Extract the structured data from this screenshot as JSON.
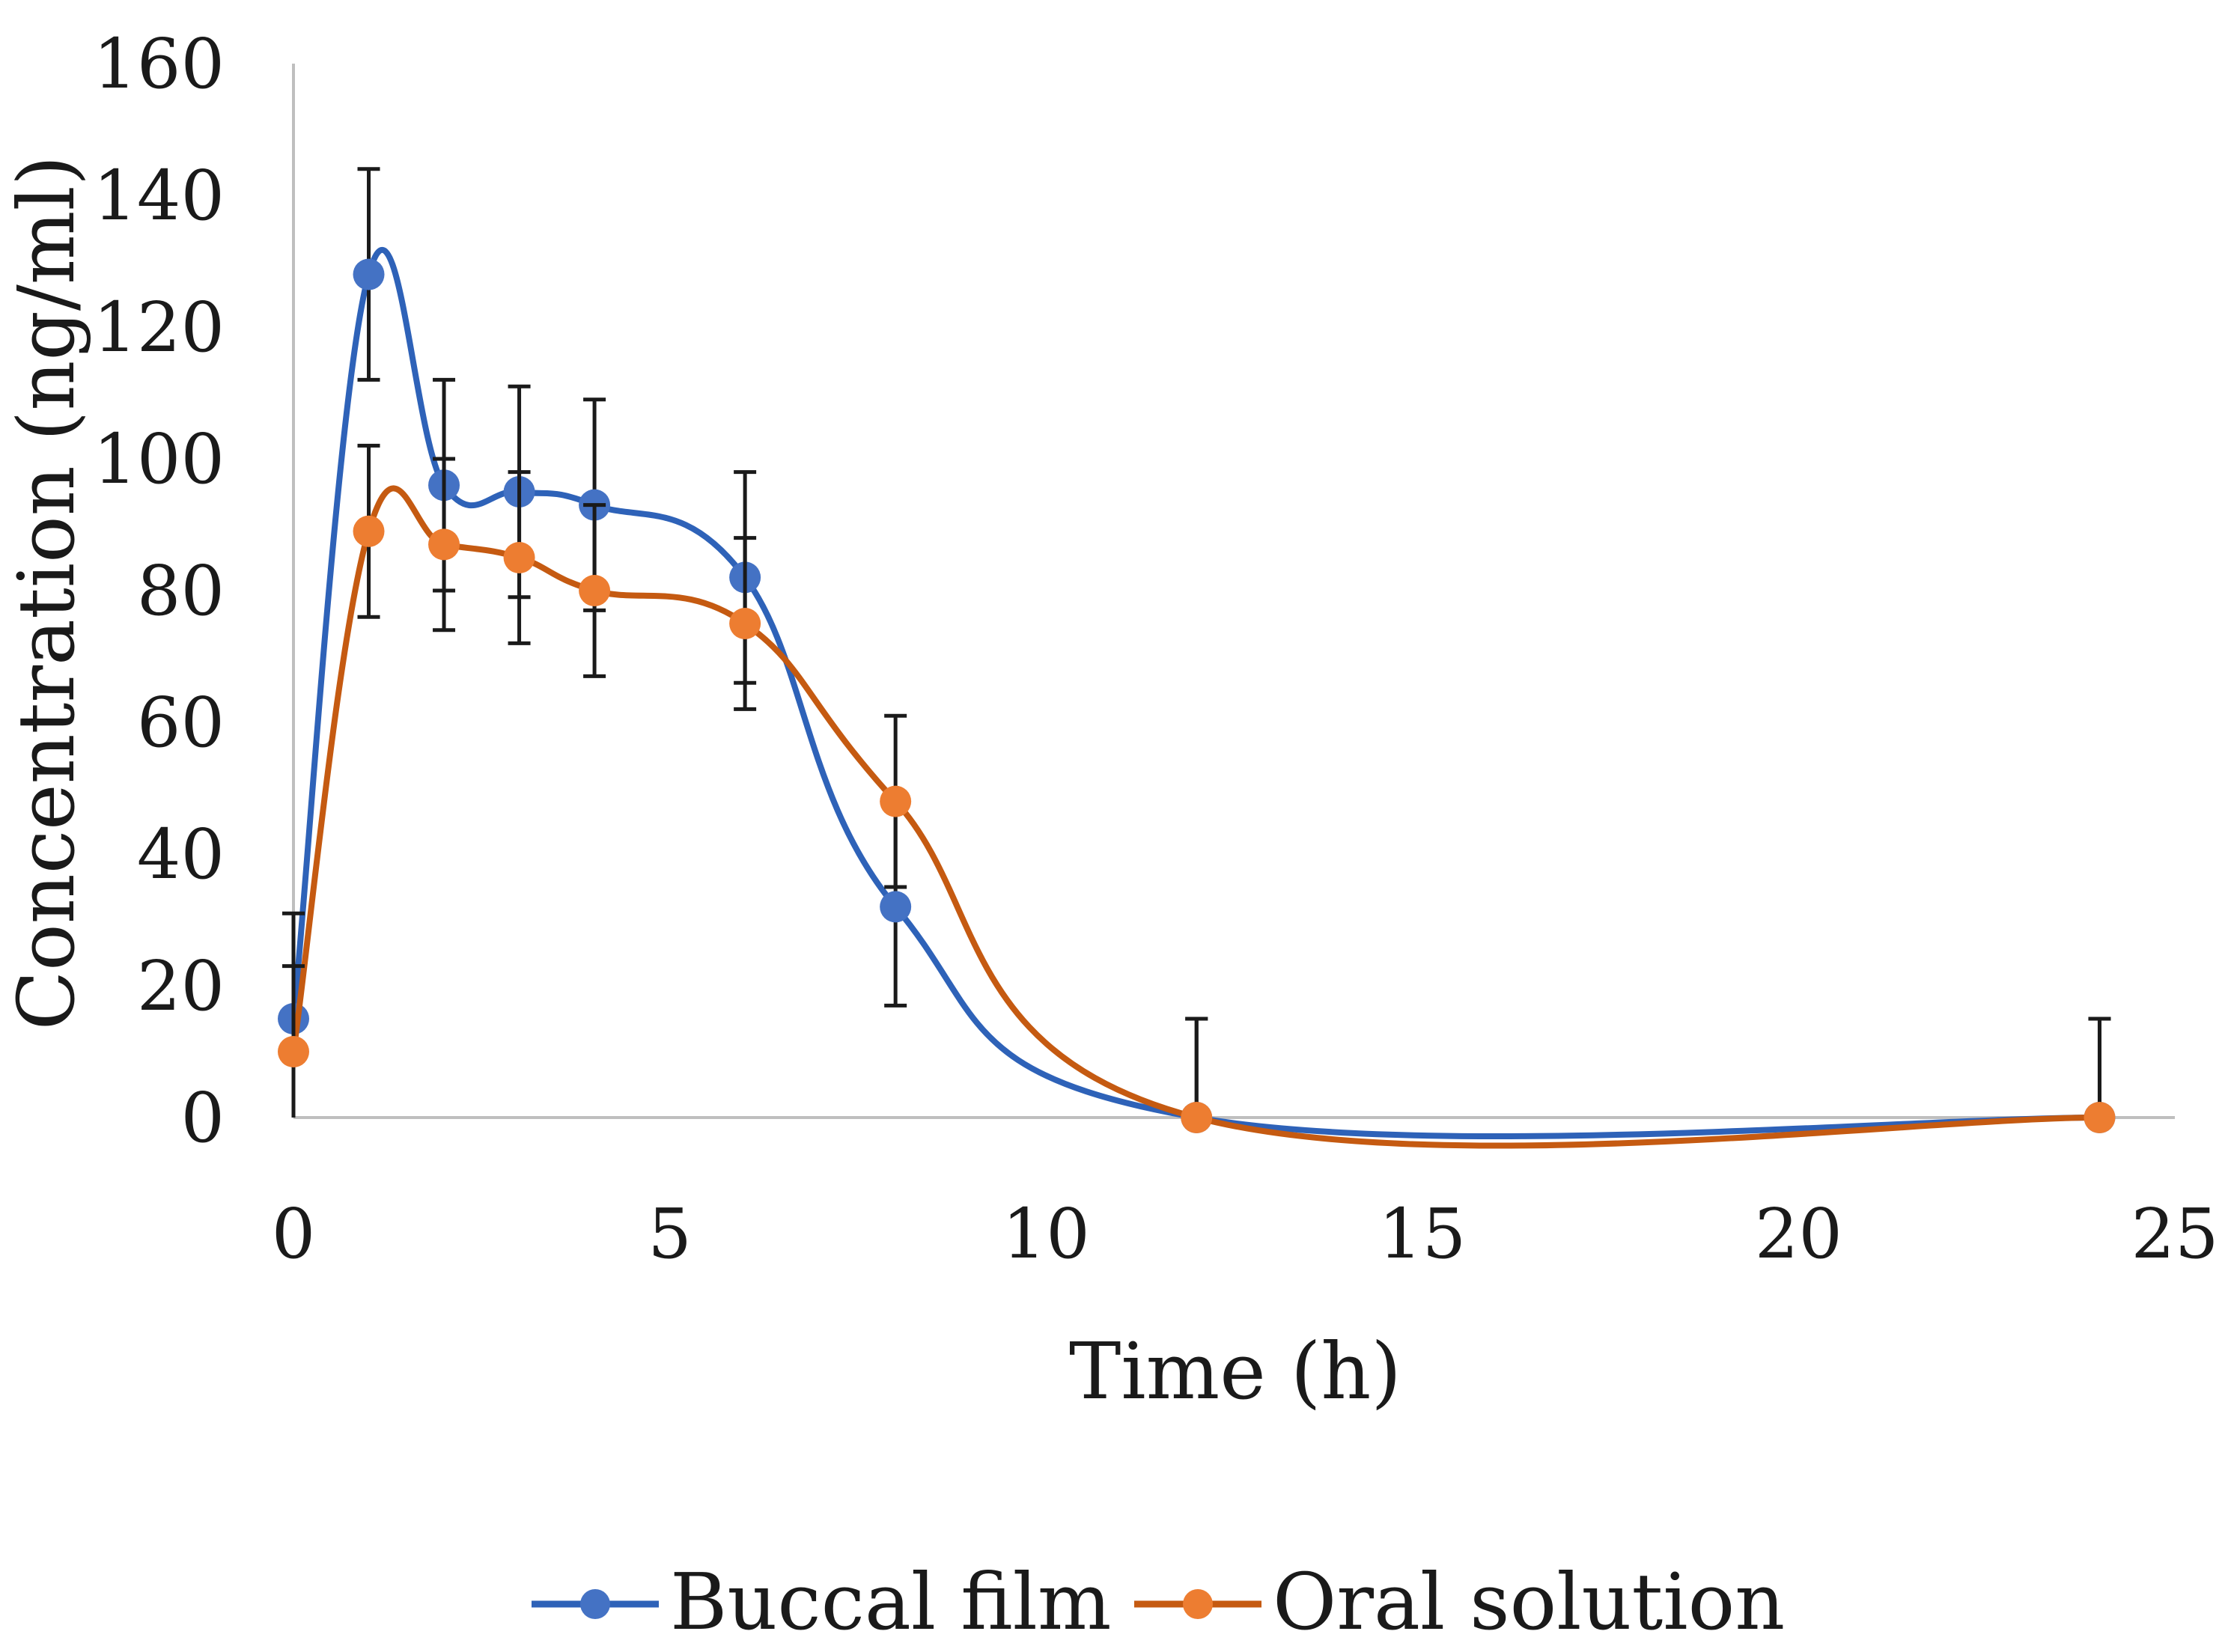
{
  "chart_data": {
    "type": "line",
    "title": "",
    "xlabel": "Time (h)",
    "ylabel": "Concentration (ng/ml)",
    "xlim": [
      0,
      25
    ],
    "ylim": [
      0,
      160
    ],
    "xticks": [
      0,
      5,
      10,
      15,
      20,
      25
    ],
    "yticks": [
      0,
      20,
      40,
      60,
      80,
      100,
      120,
      140,
      160
    ],
    "grid": false,
    "legend_position": "bottom",
    "series": [
      {
        "name": "Buccal film",
        "color": "#4472c4",
        "line_color": "#2e62b8",
        "x": [
          0,
          1,
          2,
          3,
          4,
          6,
          8,
          12,
          24
        ],
        "y": [
          15,
          128,
          96,
          95,
          93,
          82,
          32,
          0,
          0
        ],
        "error": [
          16,
          16,
          16,
          16,
          16,
          16,
          15,
          15,
          15
        ]
      },
      {
        "name": "Oral solution",
        "color": "#ed7d31",
        "line_color": "#c55a11",
        "x": [
          0,
          1,
          2,
          3,
          4,
          6,
          8,
          12,
          24
        ],
        "y": [
          10,
          89,
          87,
          85,
          80,
          75,
          48,
          0,
          0
        ],
        "error": [
          13,
          13,
          13,
          13,
          13,
          13,
          13,
          15,
          15
        ]
      }
    ]
  }
}
